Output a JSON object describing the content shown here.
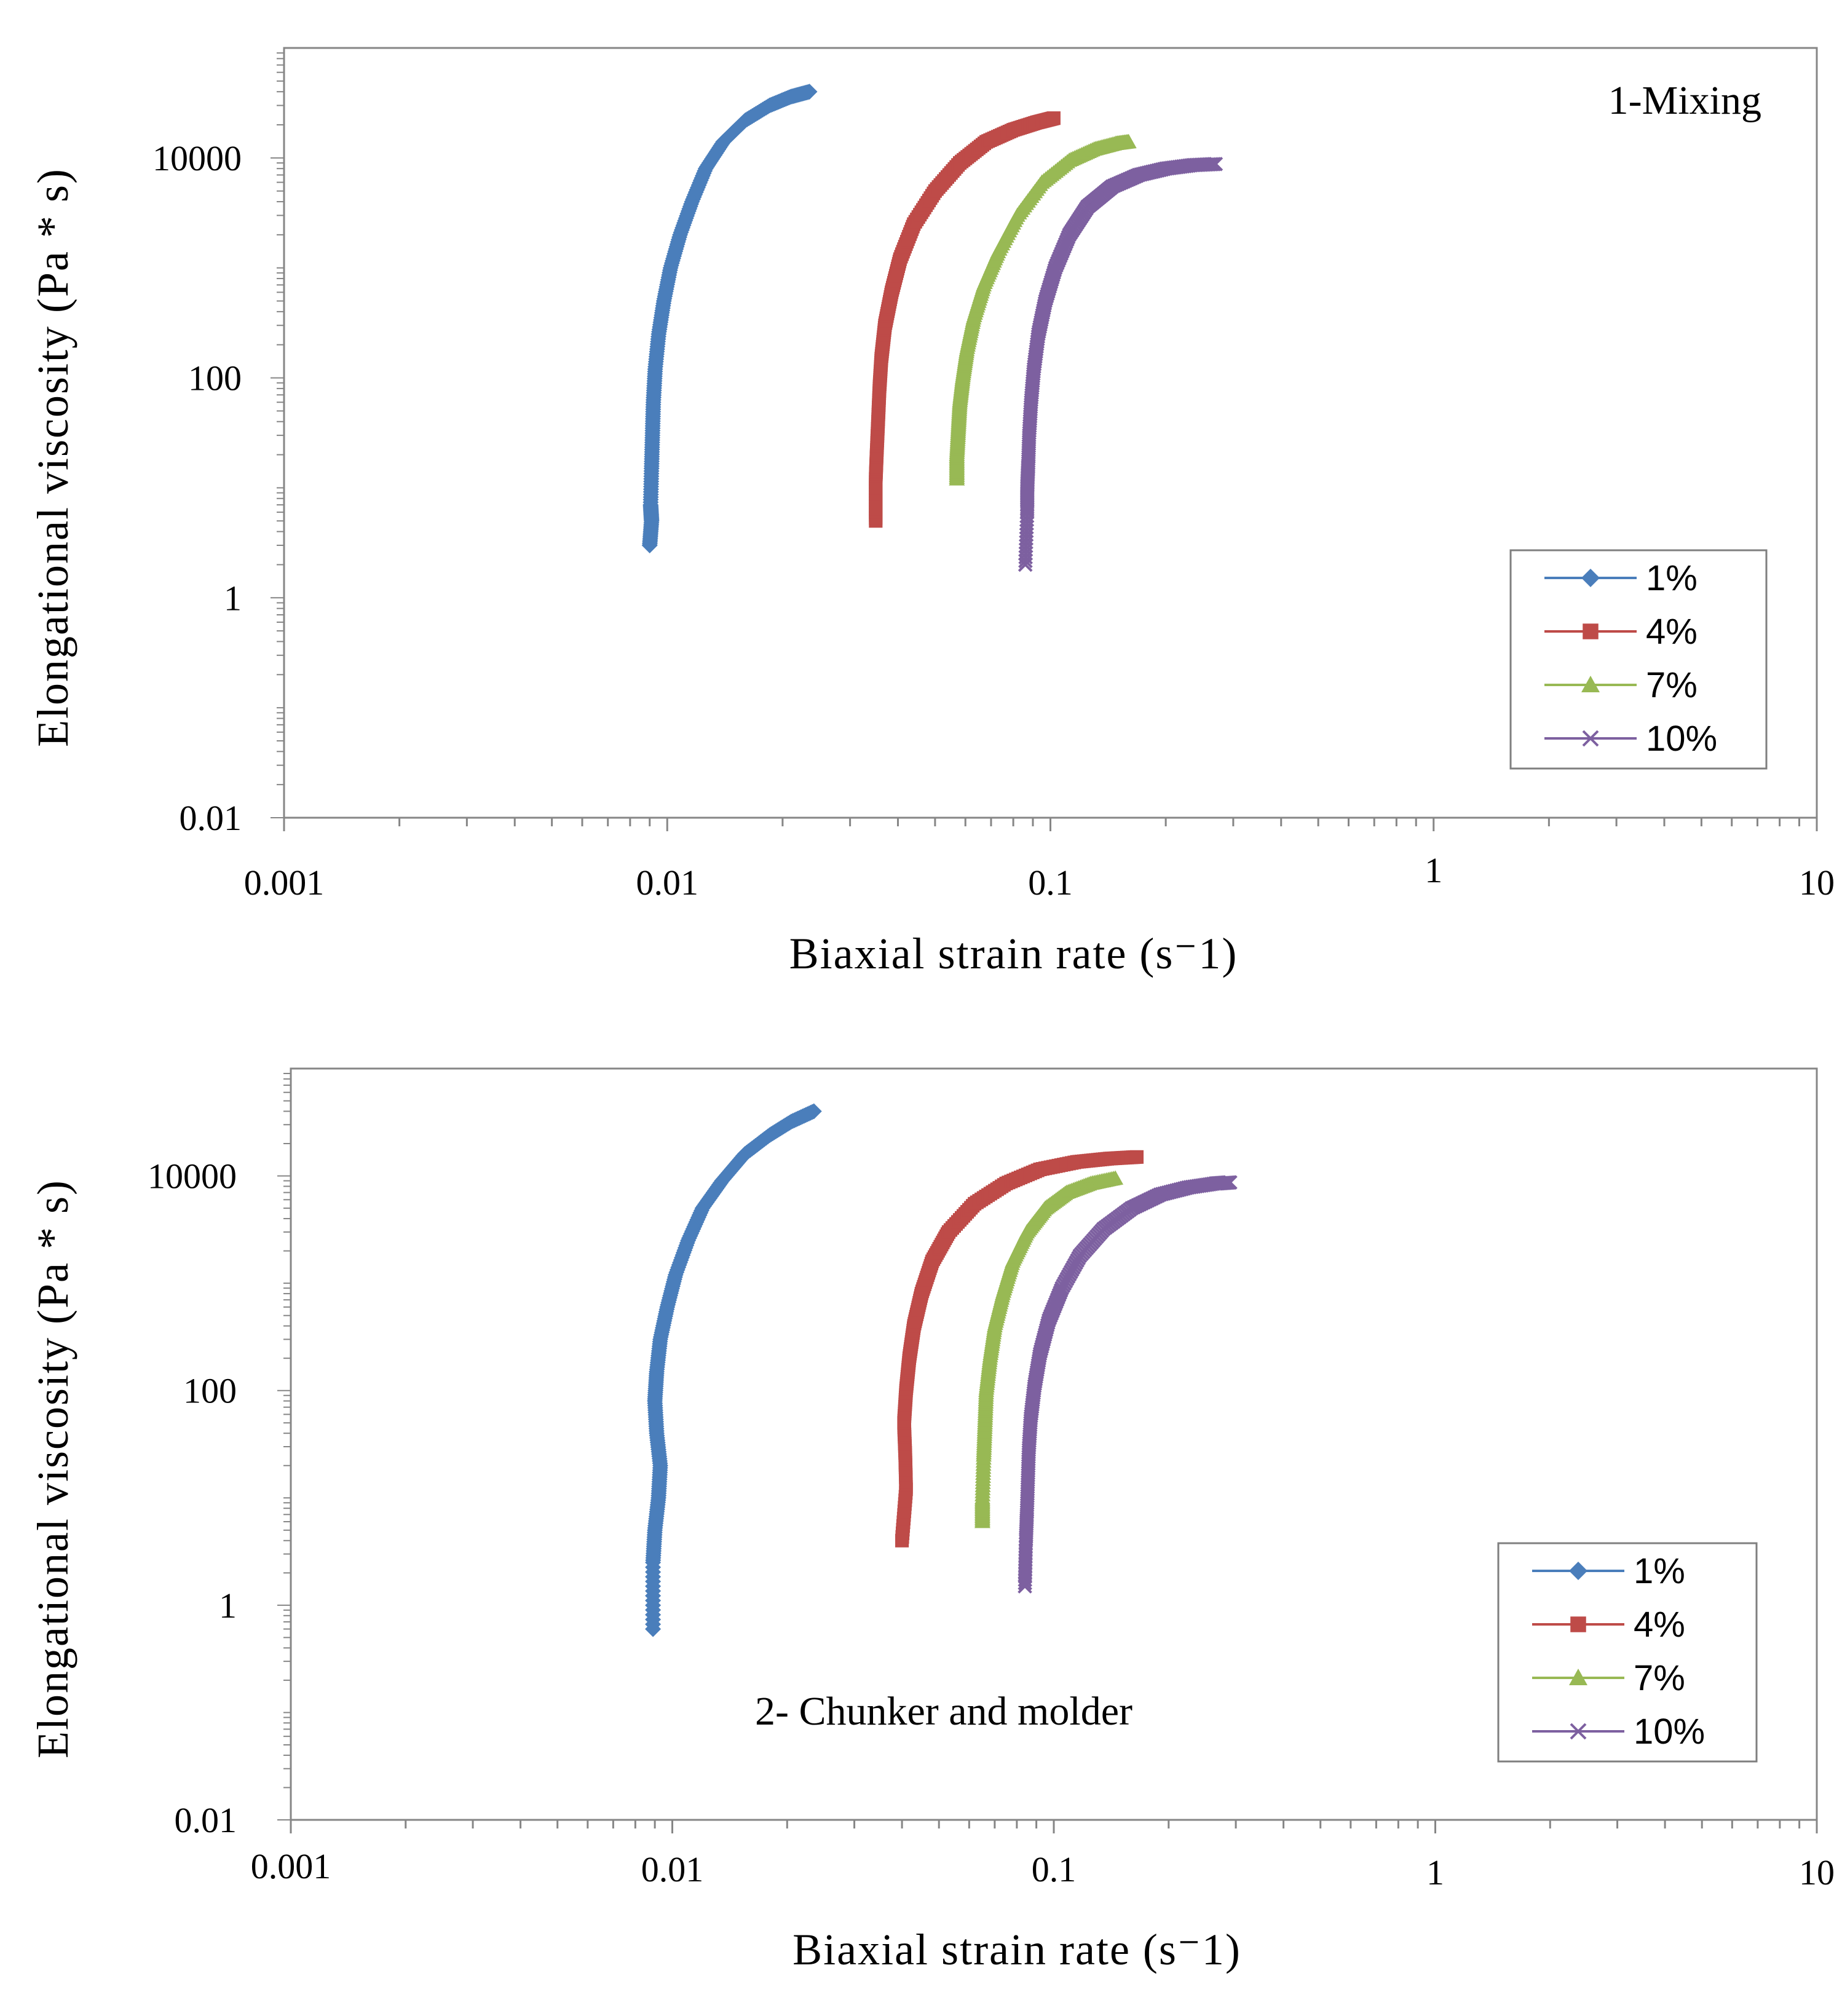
{
  "colors": {
    "1%": "#4a7ebb",
    "4%": "#be4b48",
    "7%": "#98b954",
    "10%": "#7d60a0",
    "axis": "#868686",
    "text": "#000000"
  },
  "marker_icons": {
    "1%": "diamond-marker-icon",
    "4%": "square-marker-icon",
    "7%": "triangle-marker-icon",
    "10%": "x-marker-icon"
  },
  "chart_data": [
    {
      "type": "scatter",
      "title": "1-Mixing",
      "xlabel": "Biaxial strain rate (s⁻1)",
      "ylabel": "Elongational viscosity (Pa * s)",
      "xscale": "log",
      "yscale": "log",
      "xlim": [
        0.001,
        10
      ],
      "ylim": [
        0.01,
        100000
      ],
      "xticks": [
        "0.001",
        "0.01",
        "0.1",
        "1",
        "10"
      ],
      "yticks": [
        "0.01",
        "1",
        "100",
        "10000"
      ],
      "legend": "bottom-right",
      "series": [
        {
          "name": "1%",
          "marker": "diamond",
          "x": [
            0.009,
            0.0091,
            0.00905,
            0.0091,
            0.00915,
            0.0092,
            0.0093,
            0.0095,
            0.0098,
            0.0102,
            0.0108,
            0.0116,
            0.0126,
            0.014,
            0.016,
            0.0185,
            0.021,
            0.0235
          ],
          "y": [
            3,
            5,
            7,
            15,
            30,
            60,
            120,
            250,
            500,
            1000,
            2000,
            4000,
            8000,
            14000,
            22000,
            30000,
            36000,
            40000
          ]
        },
        {
          "name": "4%",
          "marker": "square",
          "x": [
            0.035,
            0.035,
            0.0352,
            0.0355,
            0.0358,
            0.0362,
            0.037,
            0.0385,
            0.0405,
            0.044,
            0.05,
            0.058,
            0.068,
            0.08,
            0.092,
            0.102
          ],
          "y": [
            5,
            12,
            20,
            40,
            80,
            150,
            300,
            600,
            1200,
            2500,
            5000,
            9000,
            14000,
            18000,
            21000,
            23000
          ]
        },
        {
          "name": "7%",
          "marker": "triangle",
          "x": [
            0.057,
            0.057,
            0.0575,
            0.058,
            0.059,
            0.0605,
            0.063,
            0.067,
            0.073,
            0.082,
            0.095,
            0.112,
            0.13,
            0.148,
            0.16
          ],
          "y": [
            12,
            20,
            35,
            60,
            100,
            180,
            350,
            700,
            1400,
            3000,
            6000,
            9500,
            12000,
            13500,
            14000
          ]
        },
        {
          "name": "10%",
          "marker": "x",
          "x": [
            0.086,
            0.087,
            0.087,
            0.0875,
            0.088,
            0.089,
            0.0905,
            0.093,
            0.097,
            0.103,
            0.112,
            0.125,
            0.145,
            0.17,
            0.2,
            0.235,
            0.27
          ],
          "y": [
            2,
            6,
            10,
            16,
            30,
            60,
            120,
            250,
            500,
            1000,
            2000,
            3600,
            5500,
            7000,
            8000,
            8600,
            8800
          ]
        }
      ]
    },
    {
      "type": "scatter",
      "title": "2- Chunker and molder",
      "xlabel": "Biaxial strain rate (s⁻1)",
      "ylabel": "Elongational viscosity (Pa * s)",
      "xscale": "log",
      "yscale": "log",
      "xlim": [
        0.001,
        10
      ],
      "ylim": [
        0.01,
        100000
      ],
      "xticks": [
        "0.001",
        "0.01",
        "0.1",
        "1",
        "10"
      ],
      "yticks": [
        "0.01",
        "1",
        "100",
        "10000"
      ],
      "legend": "bottom-right",
      "series": [
        {
          "name": "1%",
          "marker": "diamond",
          "x": [
            0.0089,
            0.0089,
            0.009,
            0.0092,
            0.0093,
            0.0091,
            0.009,
            0.0091,
            0.0093,
            0.0097,
            0.0102,
            0.011,
            0.012,
            0.0135,
            0.0155,
            0.018,
            0.0205,
            0.0235
          ],
          "y": [
            0.6,
            2.5,
            5,
            10,
            20,
            40,
            80,
            150,
            300,
            600,
            1200,
            2500,
            5000,
            9000,
            16000,
            24000,
            32000,
            40000
          ]
        },
        {
          "name": "4%",
          "marker": "square",
          "x": [
            0.04,
            0.041,
            0.0408,
            0.0405,
            0.041,
            0.0418,
            0.043,
            0.045,
            0.048,
            0.053,
            0.062,
            0.075,
            0.092,
            0.115,
            0.14,
            0.165
          ],
          "y": [
            4,
            12,
            25,
            50,
            100,
            200,
            400,
            800,
            1600,
            3000,
            5500,
            8500,
            11500,
            13500,
            14500,
            15000
          ]
        },
        {
          "name": "7%",
          "marker": "triangle",
          "x": [
            0.065,
            0.065,
            0.0655,
            0.066,
            0.0665,
            0.068,
            0.07,
            0.0735,
            0.078,
            0.085,
            0.095,
            0.108,
            0.125,
            0.145
          ],
          "y": [
            6,
            10,
            25,
            50,
            100,
            200,
            400,
            800,
            1600,
            3000,
            5000,
            7000,
            8500,
            9500
          ]
        },
        {
          "name": "10%",
          "marker": "x",
          "x": [
            0.084,
            0.0845,
            0.085,
            0.0855,
            0.086,
            0.087,
            0.089,
            0.092,
            0.097,
            0.105,
            0.117,
            0.135,
            0.16,
            0.19,
            0.225,
            0.265,
            0.29
          ],
          "y": [
            1.5,
            4,
            7,
            14,
            28,
            55,
            110,
            220,
            450,
            900,
            1800,
            3200,
            5000,
            6700,
            7800,
            8500,
            8700
          ]
        }
      ]
    }
  ]
}
